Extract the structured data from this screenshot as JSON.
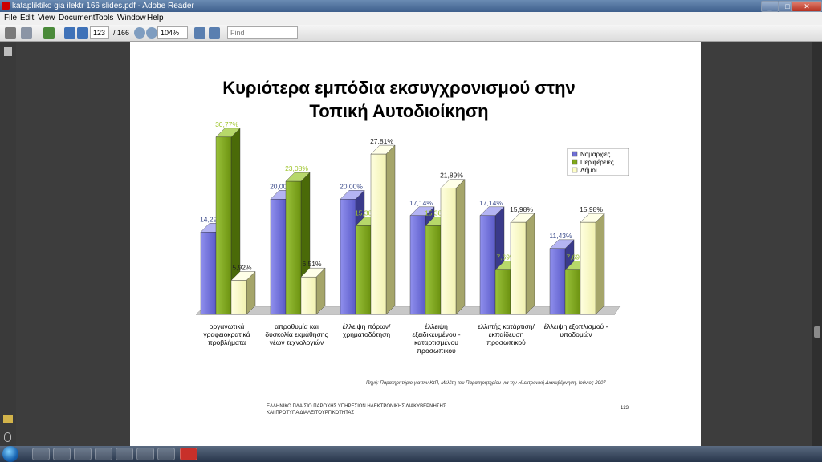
{
  "window": {
    "title": "katapliktiko gia ilektr 166 slides.pdf - Adobe Reader"
  },
  "menu": [
    "File",
    "Edit",
    "View",
    "Document",
    "Tools",
    "Window",
    "Help"
  ],
  "toolbar": {
    "page_current": "123",
    "page_total": "/ 166",
    "zoom": "104%",
    "find_placeholder": "Find"
  },
  "slide": {
    "title_line1": "Κυριότερα εμπόδια εκσυγχρονισμού στην",
    "title_line2": "Τοπική Αυτοδιοίκηση",
    "source": "Πηγή: Παρατηρητήριο για την ΚτΠ, Μελέτη του Παρατηρητηρίου για την Ηλεκτρονική Διακυβέρνηση, Ιούνιος 2007",
    "footer_line1": "ΕΛΛΗΝΙΚΟ ΠΛΑΙΣΙΟ ΠΑΡΟΧΗΣ ΥΠΗΡΕΣΙΩΝ ΗΛΕΚΤΡΟΝΙΚΗΣ ΔΙΑΚΥΒΕΡΝΗΣΗΣ",
    "footer_line2": "ΚΑΙ ΠΡΟΤΥΠΑ ΔΙΑΛΕΙΤΟΥΡΓΙΚΟΤΗΤΑΣ",
    "page_number": "123"
  },
  "chart_data": {
    "type": "bar",
    "title": "Κυριότερα εμπόδια εκσυγχρονισμού στην Τοπική Αυτοδιοίκηση",
    "categories": [
      [
        "οργανωτικά",
        "γραφειοκρατικά",
        "προβλήματα"
      ],
      [
        "απροθυμία και",
        "δυσκολία εκμάθησης",
        "νέων τεχνολογιών"
      ],
      [
        "έλλειψη πόρων/",
        "χρηματοδότηση"
      ],
      [
        "έλλειψη",
        "εξειδικευμένου -",
        "καταρτισμένου",
        "προσωπικού"
      ],
      [
        "ελλιπής κατάρτιση/",
        "εκπαίδευση",
        "προσωπικού"
      ],
      [
        "έλλειψη εξοπλισμού -",
        "υποδομών"
      ]
    ],
    "series": [
      {
        "name": "Νομαρχίες",
        "values": [
          14.29,
          20.0,
          20.0,
          17.14,
          17.14,
          11.43
        ],
        "labels": [
          "14,29%",
          "20,00%",
          "20,00%",
          "17,14%",
          "17,14%",
          "11,43%"
        ],
        "color": "#6f6fd6",
        "label_color": "#3a4a8a"
      },
      {
        "name": "Περιφέρειες",
        "values": [
          30.77,
          23.08,
          15.38,
          15.38,
          7.69,
          7.69
        ],
        "labels": [
          "30,77%",
          "23,08%",
          "15,38%",
          "15,38%",
          "7,69%",
          "7,69%"
        ],
        "color": "#80a818",
        "label_color": "#9ec42a"
      },
      {
        "name": "Δήμοι",
        "values": [
          5.92,
          6.51,
          27.81,
          21.89,
          15.98,
          15.98
        ],
        "labels": [
          "5,92%",
          "6,51%",
          "27,81%",
          "21,89%",
          "15,98%",
          "15,98%"
        ],
        "color": "#fdfdc6",
        "label_color": "#222222"
      }
    ],
    "ylim": [
      0,
      32
    ],
    "legend": "top-right",
    "grid": false
  }
}
